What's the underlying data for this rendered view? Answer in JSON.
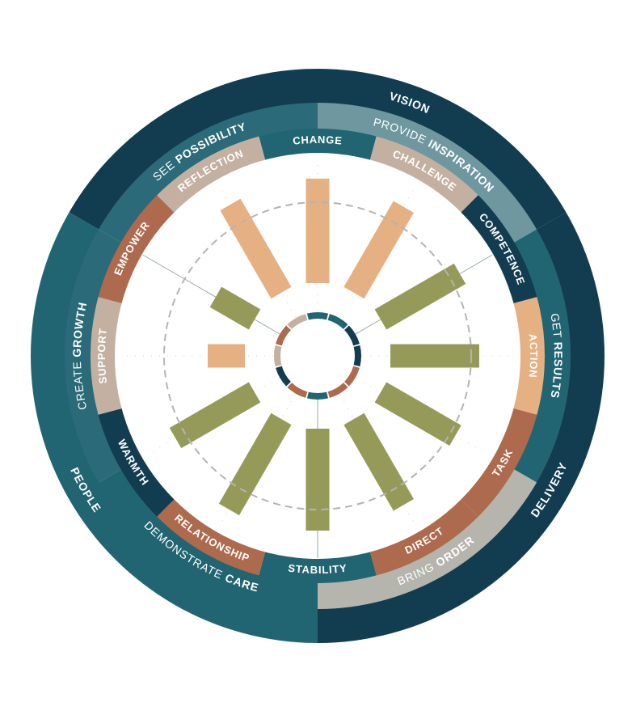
{
  "colors": {
    "dark_teal": "#123d50",
    "mid_teal": "#226572",
    "teal_sector": "#2b6a78",
    "slate": "#6e97a0",
    "gray": "#b5b5ad",
    "brown": "#ad6a4d",
    "peach": "#e5b082",
    "taupe": "#c4b0a0",
    "olive": "#969a59",
    "white": "#ffffff"
  },
  "outer_ring": [
    {
      "label": "VISION"
    },
    {
      "label": "DELIVERY"
    },
    {
      "label": "PEOPLE"
    }
  ],
  "middle_ring": [
    {
      "light": "SEE",
      "bold": "POSSIBILITY"
    },
    {
      "light": "PROVIDE",
      "bold": "INSPIRATION"
    },
    {
      "light": "GET",
      "bold": "RESULTS"
    },
    {
      "light": "BRING",
      "bold": "ORDER"
    },
    {
      "light": "DEMONSTRATE",
      "bold": "CARE"
    },
    {
      "light": "CREATE",
      "bold": "GROWTH"
    }
  ],
  "inner_ring": [
    {
      "label": "CHANGE"
    },
    {
      "label": "CHALLENGE"
    },
    {
      "label": "COMPETENCE"
    },
    {
      "label": "ACTION"
    },
    {
      "label": "TASK"
    },
    {
      "label": "DIRECT"
    },
    {
      "label": "STABILITY"
    },
    {
      "label": "RELATIONSHIP"
    },
    {
      "label": "WARMTH"
    },
    {
      "label": "SUPPORT"
    },
    {
      "label": "EMPOWER"
    },
    {
      "label": "REFLECTION"
    }
  ],
  "chart_data": {
    "type": "radial-bar",
    "categories": [
      "CHANGE",
      "CHALLENGE",
      "COMPETENCE",
      "ACTION",
      "TASK",
      "DIRECT",
      "STABILITY",
      "RELATIONSHIP",
      "WARMTH",
      "SUPPORT",
      "EMPOWER",
      "REFLECTION"
    ],
    "values": [
      0.92,
      0.88,
      0.82,
      0.8,
      0.78,
      0.88,
      0.9,
      0.92,
      0.82,
      0.4,
      0.46,
      0.9
    ],
    "bar_colors": [
      "peach",
      "peach",
      "olive",
      "olive",
      "olive",
      "olive",
      "olive",
      "olive",
      "olive",
      "peach",
      "olive",
      "peach"
    ],
    "reference_line": 0.5
  }
}
